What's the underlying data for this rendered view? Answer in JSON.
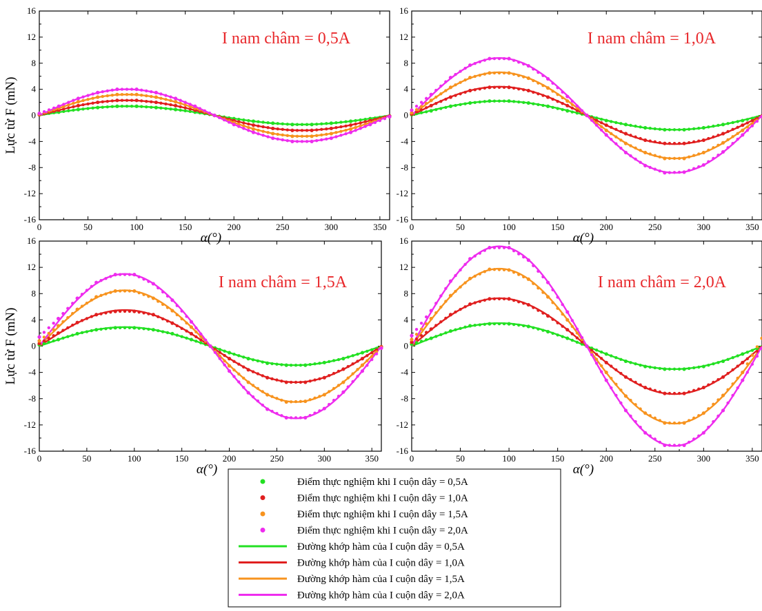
{
  "chart_data": {
    "type": "scatter",
    "ylabel": "Lực từ F (mN)",
    "xlabel": "α(°)",
    "xlim": [
      0,
      360
    ],
    "ylim": [
      -16,
      16
    ],
    "x_ticks": [
      "0",
      "50",
      "100",
      "150",
      "200",
      "250",
      "300",
      "350"
    ],
    "y_ticks": [
      "-16",
      "-12",
      "-8",
      "-4",
      "0",
      "4",
      "8",
      "12",
      "16"
    ],
    "grid": false,
    "legend_position": "bottom-center",
    "x": [
      0,
      20,
      40,
      60,
      80,
      100,
      120,
      140,
      160,
      180,
      200,
      220,
      240,
      260,
      280,
      300,
      320,
      340,
      360
    ],
    "colors": {
      "I cuộn dây = 0,5A": "#22e022",
      "I cuộn dây = 1,0A": "#e01f1f",
      "I cuộn dây = 1,5A": "#f7931e",
      "I cuộn dây = 2,0A": "#ee2cee"
    },
    "panels": [
      {
        "title": "I nam châm = 0,5A",
        "series": [
          {
            "name": "I cuộn dây = 0,5A",
            "amplitude": 1.4,
            "points": [
              0.1,
              0.5,
              0.9,
              1.2,
              1.4,
              1.4,
              1.2,
              0.9,
              0.5,
              0.0,
              -0.5,
              -0.9,
              -1.2,
              -1.4,
              -1.4,
              -1.2,
              -0.9,
              -0.5,
              -0.1
            ]
          },
          {
            "name": "I cuộn dây = 1,0A",
            "amplitude": 2.3,
            "points": [
              0.1,
              0.8,
              1.5,
              2.0,
              2.3,
              2.3,
              2.0,
              1.5,
              0.8,
              0.0,
              -0.8,
              -1.5,
              -2.0,
              -2.3,
              -2.3,
              -2.0,
              -1.5,
              -0.8,
              -0.1
            ]
          },
          {
            "name": "I cuộn dây = 1,5A",
            "amplitude": 3.2,
            "points": [
              0.2,
              1.1,
              2.1,
              2.8,
              3.2,
              3.2,
              2.8,
              2.1,
              1.1,
              0.0,
              -1.1,
              -2.1,
              -2.8,
              -3.2,
              -3.2,
              -2.8,
              -2.1,
              -1.1,
              -0.2
            ]
          },
          {
            "name": "I cuộn dây = 2,0A",
            "amplitude": 4.0,
            "points": [
              0.3,
              1.4,
              2.6,
              3.5,
              4.0,
              4.0,
              3.5,
              2.6,
              1.4,
              0.0,
              -1.4,
              -2.6,
              -3.5,
              -4.0,
              -4.0,
              -3.5,
              -2.6,
              -1.4,
              -0.2
            ]
          }
        ]
      },
      {
        "title": "I nam châm = 1,0A",
        "series": [
          {
            "name": "I cuộn dây = 0,5A",
            "amplitude": 2.2,
            "points": [
              0.1,
              0.7,
              1.4,
              1.9,
              2.2,
              2.2,
              1.9,
              1.4,
              0.7,
              0.0,
              -0.8,
              -1.4,
              -1.9,
              -2.2,
              -2.2,
              -1.9,
              -1.4,
              -0.8,
              -0.1
            ]
          },
          {
            "name": "I cuộn dây = 1,0A",
            "amplitude": 4.4,
            "points": [
              0.2,
              1.5,
              2.8,
              3.8,
              4.3,
              4.3,
              3.8,
              2.8,
              1.5,
              0.0,
              -1.5,
              -2.8,
              -3.8,
              -4.3,
              -4.3,
              -3.8,
              -2.8,
              -1.5,
              -0.1
            ]
          },
          {
            "name": "I cuộn dây = 1,5A",
            "amplitude": 6.6,
            "points": [
              0.4,
              2.3,
              4.3,
              5.8,
              6.5,
              6.5,
              5.7,
              4.2,
              2.2,
              0.0,
              -2.3,
              -4.3,
              -5.7,
              -6.6,
              -6.6,
              -5.7,
              -4.2,
              -2.3,
              -0.2
            ]
          },
          {
            "name": "I cuộn dây = 2,0A",
            "amplitude": 8.8,
            "points": [
              0.8,
              3.2,
              5.8,
              7.7,
              8.7,
              8.7,
              7.6,
              5.6,
              2.9,
              0.0,
              -3.0,
              -5.7,
              -7.7,
              -8.8,
              -8.7,
              -7.6,
              -5.6,
              -3.0,
              -0.2
            ]
          }
        ]
      },
      {
        "title": "I nam châm = 1,5A",
        "series": [
          {
            "name": "I cuộn dây = 0,5A",
            "amplitude": 2.9,
            "points": [
              0.2,
              1.0,
              1.9,
              2.5,
              2.8,
              2.8,
              2.5,
              1.9,
              1.0,
              0.0,
              -1.0,
              -1.9,
              -2.6,
              -2.9,
              -2.9,
              -2.5,
              -1.9,
              -1.0,
              -0.1
            ]
          },
          {
            "name": "I cuộn dây = 1,0A",
            "amplitude": 5.5,
            "points": [
              0.4,
              2.0,
              3.6,
              4.8,
              5.3,
              5.3,
              4.8,
              3.5,
              1.9,
              0.0,
              -1.9,
              -3.6,
              -4.8,
              -5.5,
              -5.5,
              -4.8,
              -3.5,
              -1.9,
              -0.1
            ]
          },
          {
            "name": "I cuộn dây = 1,5A",
            "amplitude": 8.5,
            "points": [
              0.8,
              3.1,
              5.6,
              7.5,
              8.4,
              8.4,
              7.3,
              5.4,
              2.9,
              0.0,
              -3.0,
              -5.5,
              -7.4,
              -8.5,
              -8.4,
              -7.4,
              -5.5,
              -2.9,
              -0.2
            ]
          },
          {
            "name": "I cuộn dây = 2,0A",
            "amplitude": 11.0,
            "points": [
              1.4,
              4.2,
              7.3,
              9.7,
              10.9,
              10.9,
              9.5,
              7.0,
              3.7,
              0.0,
              -3.8,
              -7.1,
              -9.6,
              -10.9,
              -10.9,
              -9.5,
              -7.0,
              -3.8,
              -0.3
            ]
          }
        ]
      },
      {
        "title": "I nam châm = 2,0A",
        "series": [
          {
            "name": "I cuộn dây = 0,5A",
            "amplitude": 3.5,
            "points": [
              0.3,
              1.2,
              2.3,
              3.1,
              3.4,
              3.4,
              3.0,
              2.2,
              1.2,
              0.0,
              -1.2,
              -2.3,
              -3.1,
              -3.5,
              -3.5,
              -3.1,
              -2.3,
              -1.2,
              -0.1
            ]
          },
          {
            "name": "I cuộn dây = 1,0A",
            "amplitude": 7.3,
            "points": [
              0.6,
              2.6,
              4.8,
              6.4,
              7.2,
              7.2,
              6.3,
              4.6,
              2.5,
              0.0,
              -2.5,
              -4.7,
              -6.3,
              -7.2,
              -7.2,
              -6.3,
              -4.7,
              -2.5,
              -0.2
            ]
          },
          {
            "name": "I cuộn dây = 1,5A",
            "amplitude": 11.8,
            "points": [
              1.0,
              4.2,
              7.7,
              10.3,
              11.7,
              11.6,
              10.2,
              7.5,
              4.0,
              0.0,
              -4.0,
              -7.6,
              -10.2,
              -11.7,
              -11.7,
              -10.2,
              -7.5,
              -4.0,
              1.2
            ]
          },
          {
            "name": "I cuộn dây = 2,0A",
            "amplitude": 15.2,
            "points": [
              1.6,
              5.4,
              9.9,
              13.3,
              15.0,
              15.0,
              13.1,
              9.7,
              5.2,
              0.0,
              -5.2,
              -9.8,
              -13.2,
              -15.1,
              -15.1,
              -13.2,
              -9.8,
              -5.2,
              -0.3
            ]
          }
        ]
      }
    ],
    "legend": [
      {
        "kind": "points",
        "series": "I cuộn dây = 0,5A",
        "label": "Điểm thực nghiệm khi I cuộn dây = 0,5A"
      },
      {
        "kind": "points",
        "series": "I cuộn dây = 1,0A",
        "label": "Điểm thực nghiệm khi I cuộn dây = 1,0A"
      },
      {
        "kind": "points",
        "series": "I cuộn dây = 1,5A",
        "label": "Điểm thực nghiệm khi I cuộn dây = 1,5A"
      },
      {
        "kind": "points",
        "series": "I cuộn dây = 2,0A",
        "label": "Điểm thực nghiệm khi I cuộn dây = 2,0A"
      },
      {
        "kind": "line",
        "series": "I cuộn dây = 0,5A",
        "label": "Đường khớp hàm của I cuộn dây = 0,5A"
      },
      {
        "kind": "line",
        "series": "I cuộn dây = 1,0A",
        "label": "Đường khớp hàm của I cuộn dây = 1,0A"
      },
      {
        "kind": "line",
        "series": "I cuộn dây = 1,5A",
        "label": "Đường khớp hàm của I cuộn dây = 1,5A"
      },
      {
        "kind": "line",
        "series": "I cuộn dây = 2,0A",
        "label": "Đường khớp hàm của I cuộn dây = 2,0A"
      }
    ]
  }
}
